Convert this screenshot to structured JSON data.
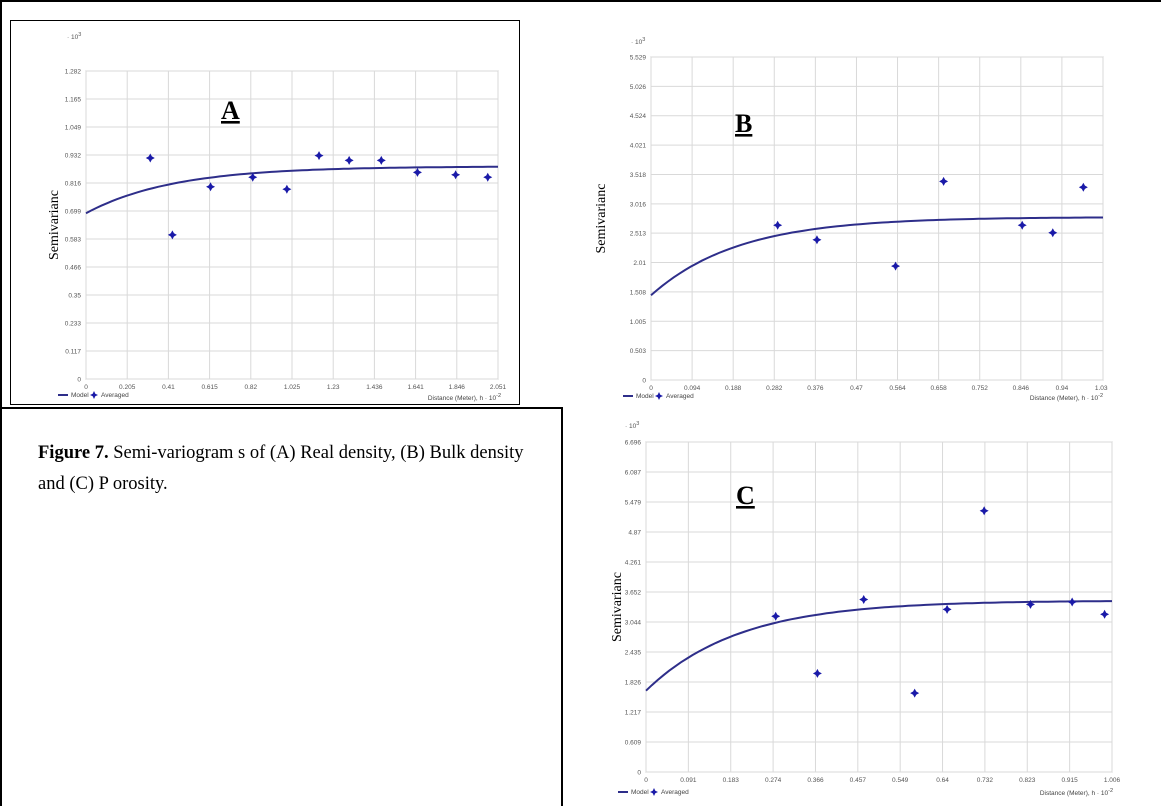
{
  "caption": {
    "label": "Figure 7.",
    "text": " Semi-variogram s of  (A) Real density, (B) Bulk density and (C) P orosity."
  },
  "legend": {
    "model": "Model",
    "averaged": "Averaged"
  },
  "colors": {
    "model": "#2e2e8a",
    "points": "#1a1aa8",
    "grid": "#d9d9d9"
  },
  "chart_data": [
    {
      "type": "scatter",
      "title": "A",
      "ylabel": "Semivarianc",
      "xlabel": "Distance (Meter), h · 10",
      "xlabel_exp": "-2",
      "y_multiplier": "· 10",
      "y_multiplier_exp": "3",
      "xlim": [
        0,
        2.051
      ],
      "ylim": [
        0,
        1.282
      ],
      "xticks": [
        "0",
        "0.205",
        "0.41",
        "0.615",
        "0.82",
        "1.025",
        "1.23",
        "1.436",
        "1.641",
        "1.846",
        "2.051"
      ],
      "yticks": [
        "0",
        "0.117",
        "0.233",
        "0.35",
        "0.466",
        "0.583",
        "0.699",
        "0.816",
        "0.932",
        "1.049",
        "1.165",
        "1.282"
      ],
      "x": [
        0.32,
        0.43,
        0.62,
        0.83,
        1.0,
        1.16,
        1.31,
        1.47,
        1.65,
        1.84,
        2.0
      ],
      "y": [
        0.92,
        0.6,
        0.8,
        0.84,
        0.79,
        0.93,
        0.91,
        0.91,
        0.86,
        0.85,
        0.84
      ],
      "model": {
        "nugget": 0.69,
        "sill": 0.885,
        "range": 1.3
      }
    },
    {
      "type": "scatter",
      "title": "B",
      "ylabel": "Semivarianc",
      "xlabel": "Distance (Meter), h · 10",
      "xlabel_exp": "-2",
      "y_multiplier": "· 10",
      "y_multiplier_exp": "3",
      "xlim": [
        0,
        1.035
      ],
      "ylim": [
        0,
        5.529
      ],
      "xticks": [
        "0",
        "0.094",
        "0.188",
        "0.282",
        "0.376",
        "0.47",
        "0.564",
        "0.658",
        "0.752",
        "0.846",
        "0.94",
        "1.035"
      ],
      "yticks": [
        "0",
        "0.503",
        "1.005",
        "1.508",
        "2.01",
        "2.513",
        "3.016",
        "3.518",
        "4.021",
        "4.524",
        "5.026",
        "5.529"
      ],
      "x": [
        0.29,
        0.38,
        0.56,
        0.67,
        0.85,
        0.92,
        0.99
      ],
      "y": [
        2.65,
        2.4,
        1.95,
        3.4,
        2.65,
        2.52,
        3.3
      ],
      "model": {
        "nugget": 1.45,
        "sill": 2.79,
        "range": 0.6
      }
    },
    {
      "type": "scatter",
      "title": "C",
      "ylabel": "Semivarianc",
      "xlabel": "Distance (Meter), h · 10",
      "xlabel_exp": "-2",
      "y_multiplier": "· 10",
      "y_multiplier_exp": "3",
      "xlim": [
        0,
        1.006
      ],
      "ylim": [
        0,
        6.696
      ],
      "xticks": [
        "0",
        "0.091",
        "0.183",
        "0.274",
        "0.366",
        "0.457",
        "0.549",
        "0.64",
        "0.732",
        "0.823",
        "0.915",
        "1.006"
      ],
      "yticks": [
        "0",
        "0.609",
        "1.217",
        "1.826",
        "2.435",
        "3.044",
        "3.652",
        "4.261",
        "4.87",
        "5.479",
        "6.087",
        "6.696"
      ],
      "x": [
        0.28,
        0.37,
        0.47,
        0.58,
        0.65,
        0.73,
        0.83,
        0.92,
        0.99
      ],
      "y": [
        3.16,
        2.0,
        3.5,
        1.6,
        3.3,
        5.3,
        3.4,
        3.45,
        3.2
      ],
      "model": {
        "nugget": 1.65,
        "sill": 3.48,
        "range": 0.6
      }
    }
  ]
}
